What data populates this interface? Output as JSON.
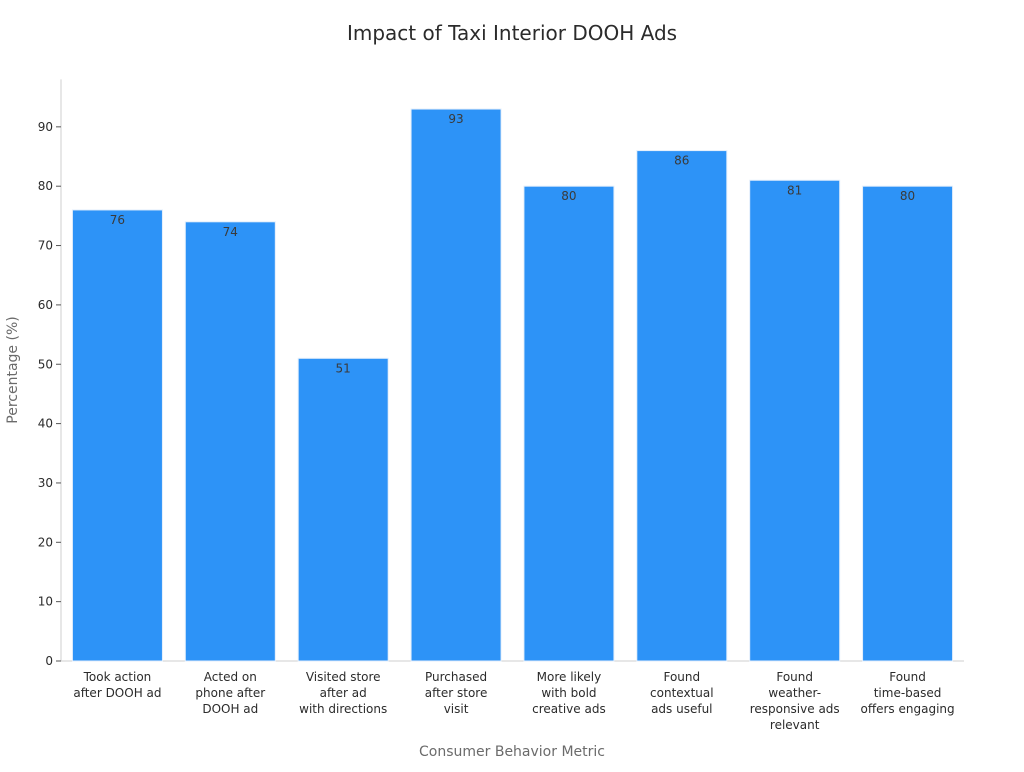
{
  "chart_data": {
    "type": "bar",
    "title": "Impact of Taxi Interior DOOH Ads",
    "xlabel": "Consumer Behavior Metric",
    "ylabel": "Percentage (%)",
    "categories": [
      [
        "Took action",
        "after DOOH ad"
      ],
      [
        "Acted on",
        "phone after",
        "DOOH ad"
      ],
      [
        "Visited store",
        "after ad",
        "with directions"
      ],
      [
        "Purchased",
        "after store",
        "visit"
      ],
      [
        "More likely",
        "with bold",
        "creative ads"
      ],
      [
        "Found",
        "contextual",
        "ads useful"
      ],
      [
        "Found",
        "weather-",
        "responsive ads",
        "relevant"
      ],
      [
        "Found",
        "time-based",
        "offers engaging"
      ]
    ],
    "values": [
      76,
      74,
      51,
      93,
      80,
      86,
      81,
      80
    ],
    "data_labels": [
      "76",
      "74",
      "51",
      "93",
      "80",
      "86",
      "81",
      "80"
    ],
    "ylim": [
      0,
      98
    ],
    "yticks": [
      0,
      10,
      20,
      30,
      40,
      50,
      60,
      70,
      80,
      90
    ],
    "grid": false,
    "legend": "none",
    "bar_color": "#2d93f7",
    "bar_edge_color": "#e3eefb"
  }
}
